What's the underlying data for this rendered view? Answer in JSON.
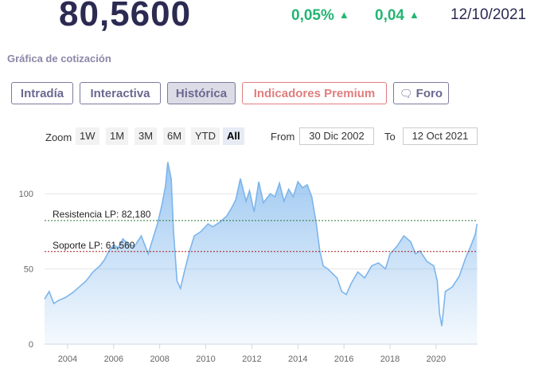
{
  "quote": {
    "price": "80,5600",
    "change_pct": "0,05%",
    "change_abs": "0,04",
    "date": "12/10/2021",
    "up_color": "#22b573"
  },
  "section_title": "Gráfica de cotización",
  "tabs": [
    {
      "label": "Intradía",
      "active": false
    },
    {
      "label": "Interactiva",
      "active": false
    },
    {
      "label": "Histórica",
      "active": true
    },
    {
      "label": "Indicadores Premium",
      "active": false
    },
    {
      "label": "Foro",
      "active": false,
      "icon": "chat-bubble-icon"
    }
  ],
  "zoom": {
    "label": "Zoom",
    "buttons": [
      "1W",
      "1M",
      "3M",
      "6M",
      "YTD",
      "All"
    ],
    "selected": "All",
    "from_label": "From",
    "from_value": "30 Dic 2002",
    "to_label": "To",
    "to_value": "12 Oct 2021"
  },
  "chart_data": {
    "type": "area",
    "title": "",
    "xlabel": "",
    "ylabel": "",
    "xlim": [
      2003.0,
      2021.8
    ],
    "ylim": [
      0,
      125
    ],
    "x_ticks": [
      2004,
      2006,
      2008,
      2010,
      2012,
      2014,
      2016,
      2018,
      2020
    ],
    "x_tick_labels": [
      "2004",
      "2006",
      "2008",
      "2010",
      "2012",
      "2014",
      "2016",
      "2018",
      "2020"
    ],
    "y_ticks": [
      0,
      50,
      100
    ],
    "y_tick_labels": [
      "0",
      "50",
      "100"
    ],
    "grid": true,
    "line_color": "#7cb5ec",
    "series": [
      {
        "x": [
          2003.0,
          2003.2,
          2003.4,
          2003.6,
          2003.9,
          2004.2,
          2004.5,
          2004.8,
          2005.1,
          2005.4,
          2005.6,
          2005.8,
          2006.0,
          2006.2,
          2006.4,
          2006.6,
          2006.9,
          2007.2,
          2007.5,
          2007.7,
          2007.9,
          2008.1,
          2008.25,
          2008.35,
          2008.5,
          2008.6,
          2008.75,
          2008.9,
          2009.1,
          2009.3,
          2009.5,
          2009.8,
          2010.1,
          2010.3,
          2010.6,
          2010.9,
          2011.1,
          2011.3,
          2011.5,
          2011.75,
          2011.9,
          2012.1,
          2012.3,
          2012.5,
          2012.8,
          2013.0,
          2013.2,
          2013.4,
          2013.6,
          2013.8,
          2014.0,
          2014.2,
          2014.4,
          2014.6,
          2014.8,
          2014.95,
          2015.1,
          2015.3,
          2015.5,
          2015.7,
          2015.9,
          2016.1,
          2016.3,
          2016.6,
          2016.9,
          2017.2,
          2017.5,
          2017.8,
          2018.0,
          2018.3,
          2018.6,
          2018.9,
          2019.1,
          2019.3,
          2019.6,
          2019.9,
          2020.05,
          2020.15,
          2020.25,
          2020.4,
          2020.7,
          2021.0,
          2021.3,
          2021.5,
          2021.7,
          2021.78
        ],
        "y": [
          30,
          35,
          27,
          29,
          31,
          34,
          38,
          42,
          48,
          52,
          56,
          62,
          66,
          64,
          70,
          67,
          65,
          72,
          60,
          70,
          80,
          93,
          105,
          121,
          110,
          75,
          42,
          37,
          50,
          62,
          72,
          75,
          80,
          78,
          81,
          85,
          90,
          96,
          110,
          95,
          102,
          88,
          108,
          94,
          100,
          98,
          107,
          95,
          103,
          98,
          108,
          104,
          106,
          98,
          80,
          62,
          52,
          50,
          47,
          44,
          35,
          33,
          40,
          48,
          44,
          52,
          54,
          50,
          60,
          65,
          72,
          68,
          60,
          62,
          55,
          52,
          42,
          20,
          12,
          35,
          38,
          45,
          58,
          65,
          73,
          80
        ]
      }
    ],
    "annotations": [
      {
        "label": "Resistencia LP: 82,180",
        "value": 82.18,
        "color": "#2d7a2d",
        "style": "dashed"
      },
      {
        "label": "Soporte LP: 61,560",
        "value": 61.56,
        "color": "#a61c1c",
        "style": "dashed"
      }
    ]
  }
}
